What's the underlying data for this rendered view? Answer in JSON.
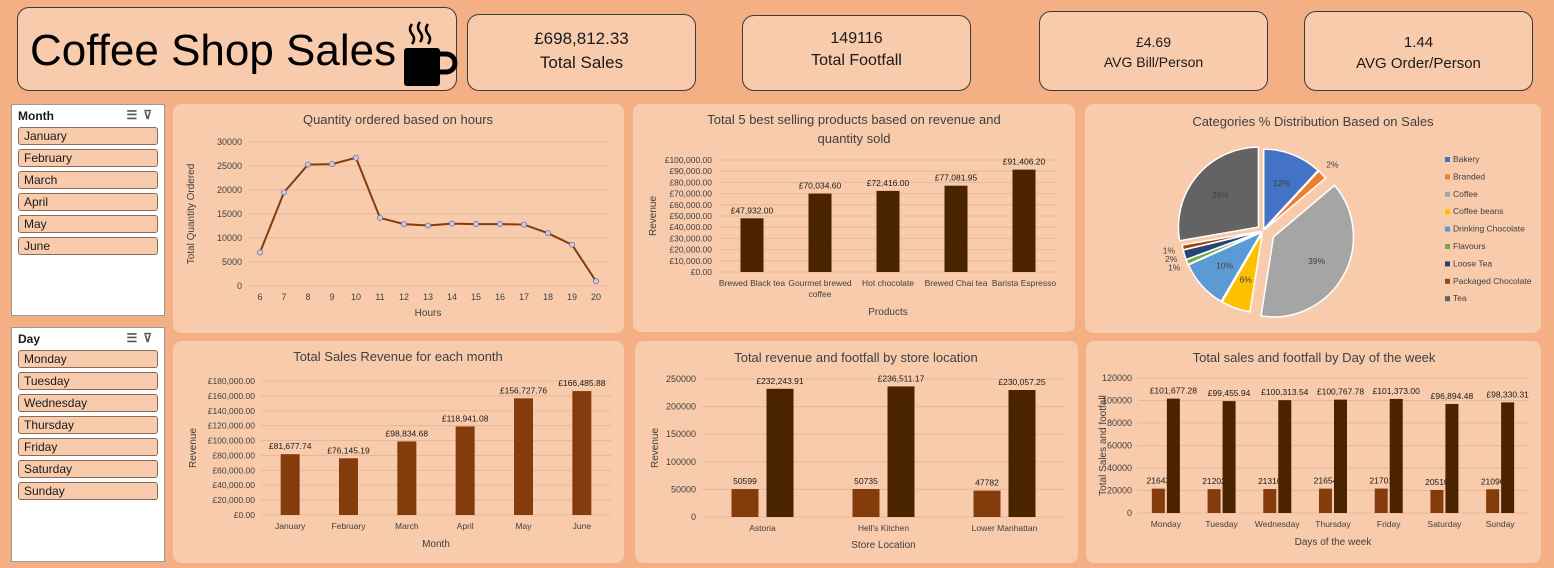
{
  "header": {
    "title": "Coffee Shop Sales",
    "icon": "coffee-cup-icon"
  },
  "kpis": {
    "total_sales": {
      "value": "£698,812.33",
      "label": "Total Sales"
    },
    "total_footfall": {
      "value": "149116",
      "label": "Total Footfall"
    },
    "avg_bill": {
      "value": "£4.69",
      "label": "AVG Bill/Person"
    },
    "avg_order": {
      "value": "1.44",
      "label": "AVG Order/Person"
    }
  },
  "slicers": {
    "month": {
      "title": "Month",
      "items": [
        "January",
        "February",
        "March",
        "April",
        "May",
        "June"
      ]
    },
    "day": {
      "title": "Day",
      "items": [
        "Monday",
        "Tuesday",
        "Wednesday",
        "Thursday",
        "Friday",
        "Saturday",
        "Sunday"
      ]
    }
  },
  "colors": {
    "background": "#f4b084",
    "panel": "#f8cbad",
    "dark_brown": "#4a2300",
    "mid_brown": "#843c0c",
    "line": "#843c0c"
  },
  "chart_data": [
    {
      "id": "hours",
      "type": "line",
      "title": "Quantity ordered based on hours",
      "xlabel": "Hours",
      "ylabel": "Total Quantity Ordered",
      "x": [
        6,
        7,
        8,
        9,
        10,
        11,
        12,
        13,
        14,
        15,
        16,
        17,
        18,
        19,
        20
      ],
      "values": [
        7000,
        19500,
        25300,
        25400,
        26700,
        14200,
        12900,
        12600,
        13000,
        12900,
        12900,
        12800,
        11000,
        8600,
        1000
      ],
      "ylim": [
        0,
        30000
      ],
      "yticks": [
        "0",
        "5000",
        "10000",
        "15000",
        "20000",
        "25000",
        "30000"
      ],
      "grid": true
    },
    {
      "id": "products",
      "type": "bar",
      "title": [
        "Total 5 best selling products based on revenue and",
        "quantity sold"
      ],
      "xlabel": "Products",
      "ylabel": "Revenue",
      "categories": [
        [
          "Brewed Black tea"
        ],
        [
          "Gourmet brewed",
          "coffee"
        ],
        [
          "Hot chocolate"
        ],
        [
          "Brewed Chai tea"
        ],
        [
          "Barista Espresso"
        ]
      ],
      "values": [
        47932.0,
        70034.6,
        72416.0,
        77081.95,
        91406.2
      ],
      "data_labels": [
        "£47,932.00",
        "£70,034.60",
        "£72,416.00",
        "£77,081.95",
        "£91,406.20"
      ],
      "ylim": [
        0,
        100000
      ],
      "yticks": [
        "£0.00",
        "£10,000.00",
        "£20,000.00",
        "£30,000.00",
        "£40,000.00",
        "£50,000.00",
        "£60,000.00",
        "£70,000.00",
        "£80,000.00",
        "£90,000.00",
        "£100,000.00"
      ],
      "grid": true
    },
    {
      "id": "categories",
      "type": "pie",
      "title": "Categories % Distribution Based on Sales",
      "slices": [
        {
          "name": "Bakery",
          "value": 12,
          "label": "12%",
          "color": "#4472c4"
        },
        {
          "name": "Branded",
          "value": 2,
          "label": "2%",
          "color": "#ed7d31"
        },
        {
          "name": "Coffee",
          "value": 39,
          "label": "39%",
          "color": "#a5a5a5"
        },
        {
          "name": "Coffee beans",
          "value": 6,
          "label": "6%",
          "color": "#ffc000"
        },
        {
          "name": "Drinking Chocolate",
          "value": 10,
          "label": "10%",
          "color": "#5b9bd5"
        },
        {
          "name": "Flavours",
          "value": 1,
          "label": "1%",
          "color": "#70ad47"
        },
        {
          "name": "Loose Tea",
          "value": 2,
          "label": "2%",
          "color": "#264478"
        },
        {
          "name": "Packaged Chocolate",
          "value": 1,
          "label": "1%",
          "color": "#9e480e"
        },
        {
          "name": "Tea",
          "value": 28,
          "label": "28%",
          "color": "#636363"
        }
      ],
      "legend": "right"
    },
    {
      "id": "months",
      "type": "bar",
      "title": "Total Sales Revenue for each month",
      "xlabel": "Month",
      "ylabel": "Revenue",
      "categories": [
        "January",
        "February",
        "March",
        "April",
        "May",
        "June"
      ],
      "values": [
        81677.74,
        76145.19,
        98834.68,
        118941.08,
        156727.76,
        166485.88
      ],
      "data_labels": [
        "£81,677.74",
        "£76,145.19",
        "£98,834.68",
        "£118,941.08",
        "£156,727.76",
        "£166,485.88"
      ],
      "ylim": [
        0,
        180000
      ],
      "yticks": [
        "£0.00",
        "£20,000.00",
        "£40,000.00",
        "£60,000.00",
        "£80,000.00",
        "£100,000.00",
        "£120,000.00",
        "£140,000.00",
        "£160,000.00",
        "£180,000.00"
      ],
      "grid": true
    },
    {
      "id": "stores",
      "type": "bar",
      "title": "Total revenue and footfall by store location",
      "xlabel": "Store Location",
      "ylabel": "Revenue",
      "categories": [
        "Astoria",
        "Hell's Kitchen",
        "Lower Manhattan"
      ],
      "series": [
        {
          "values": [
            50599,
            50735,
            47782
          ],
          "labels": [
            "50599",
            "50735",
            "47782"
          ],
          "color": "#843c0c"
        },
        {
          "values": [
            232243.91,
            236511.17,
            230057.25
          ],
          "labels": [
            "£232,243.91",
            "£236,511.17",
            "£230,057.25"
          ],
          "color": "#4a2300"
        }
      ],
      "ylim": [
        0,
        250000
      ],
      "yticks": [
        "0",
        "50000",
        "100000",
        "150000",
        "200000",
        "250000"
      ],
      "grid": true
    },
    {
      "id": "days",
      "type": "bar",
      "title": "Total sales and footfall by Day of the week",
      "xlabel": "Days of the week",
      "ylabel": "Total Sales and footfall",
      "categories": [
        "Monday",
        "Tuesday",
        "Wednesday",
        "Thursday",
        "Friday",
        "Saturday",
        "Sunday"
      ],
      "series": [
        {
          "values": [
            21643,
            21202,
            21310,
            21654,
            21701,
            20510,
            21096
          ],
          "labels": [
            "21643",
            "21202",
            "21310",
            "21654",
            "21701",
            "20510",
            "21096"
          ],
          "color": "#843c0c"
        },
        {
          "values": [
            101677.28,
            99455.94,
            100313.54,
            100767.78,
            101373.0,
            96894.48,
            98330.31
          ],
          "labels": [
            "£101,677.28",
            "£99,455.94",
            "£100,313.54",
            "£100,767.78",
            "£101,373.00",
            "£96,894.48",
            "£98,330.31"
          ],
          "color": "#4a2300"
        }
      ],
      "ylim": [
        0,
        120000
      ],
      "yticks": [
        "0",
        "20000",
        "40000",
        "60000",
        "80000",
        "100000",
        "120000"
      ],
      "grid": true
    }
  ]
}
